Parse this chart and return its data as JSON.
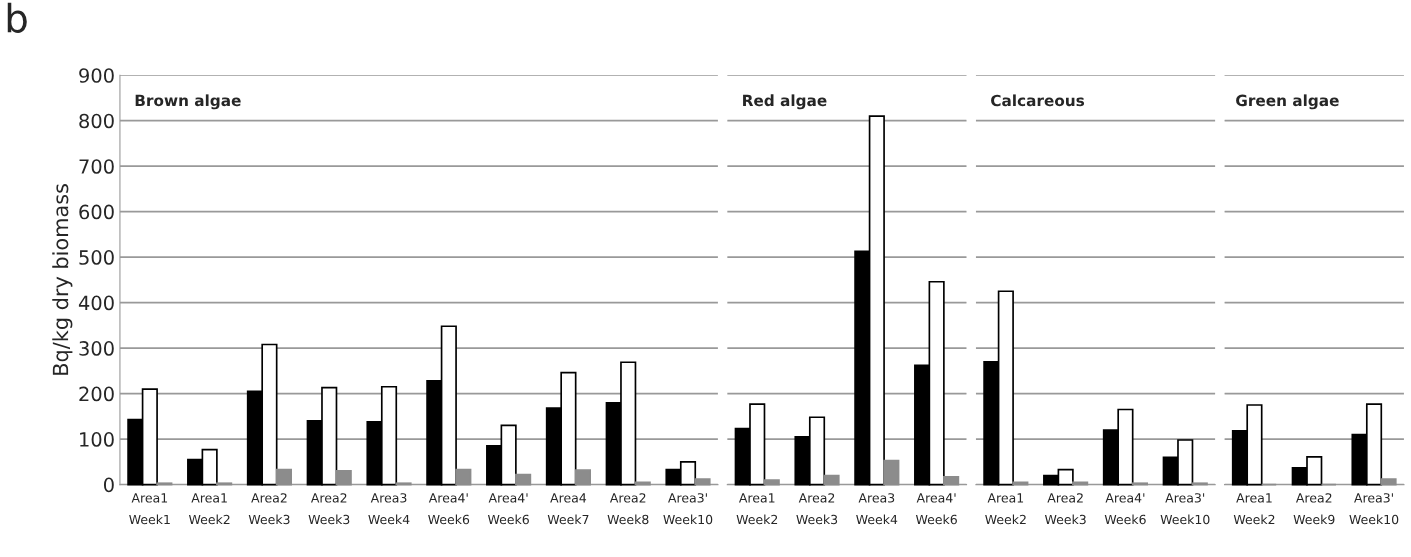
{
  "chart_data": [
    {
      "type": "bar",
      "title": "Brown algae",
      "ylabel": "Bq/kg dry biomass",
      "annotations": [
        "b"
      ],
      "categories": [
        "Area1\nWeek1",
        "Area1\nWeek2",
        "Area2\nWeek3",
        "Area2\nWeek3",
        "Area3\nWeek4",
        "Area4'\nWeek6",
        "Area4'\nWeek6",
        "Area4\nWeek7",
        "Area2\nWeek8",
        "Area3'\nWeek10"
      ],
      "series": [
        {
          "color": "#000000",
          "values": [
            143,
            55,
            205,
            140,
            138,
            228,
            85,
            168,
            180,
            33
          ]
        },
        {
          "color": "#ffffff",
          "values": [
            210,
            77,
            308,
            213,
            215,
            348,
            130,
            246,
            269,
            50
          ]
        },
        {
          "color": "#8c8c8c",
          "values": [
            3,
            3,
            33,
            30,
            3,
            33,
            22,
            32,
            5,
            12
          ]
        }
      ],
      "ylim": [
        0,
        900
      ],
      "yticks": [
        0,
        100,
        200,
        300,
        400,
        500,
        600,
        700,
        800,
        900
      ],
      "grid": "y"
    },
    {
      "type": "bar",
      "title": "Red algae",
      "categories": [
        "Area1\nWeek2",
        "Area2\nWeek3",
        "Area3\nWeek4",
        "Area4'\nWeek6"
      ],
      "series": [
        {
          "color": "#000000",
          "values": [
            123,
            105,
            513,
            262
          ]
        },
        {
          "color": "#ffffff",
          "values": [
            177,
            148,
            810,
            446
          ]
        },
        {
          "color": "#8c8c8c",
          "values": [
            10,
            20,
            53,
            17
          ]
        }
      ],
      "ylim": [
        0,
        900
      ],
      "yticks": [
        0,
        100,
        200,
        300,
        400,
        500,
        600,
        700,
        800,
        900
      ],
      "grid": "y",
      "tick_labels": "x"
    },
    {
      "type": "bar",
      "title": "Calcareous",
      "categories": [
        "Area1\nWeek2",
        "Area2\nWeek3",
        "Area4'\nWeek6",
        "Area3'\nWeek10"
      ],
      "series": [
        {
          "color": "#000000",
          "values": [
            270,
            20,
            120,
            60
          ]
        },
        {
          "color": "#ffffff",
          "values": [
            425,
            33,
            165,
            98
          ]
        },
        {
          "color": "#8c8c8c",
          "values": [
            5,
            5,
            3,
            3
          ]
        }
      ],
      "ylim": [
        0,
        900
      ],
      "yticks": [
        0,
        100,
        200,
        300,
        400,
        500,
        600,
        700,
        800,
        900
      ],
      "grid": "y",
      "tick_labels": "x"
    },
    {
      "type": "bar",
      "title": "Green algae",
      "categories": [
        "Area1\nWeek2",
        "Area2\nWeek9",
        "Area3'\nWeek10"
      ],
      "series": [
        {
          "color": "#000000",
          "values": [
            118,
            37,
            110
          ]
        },
        {
          "color": "#ffffff",
          "values": [
            175,
            61,
            177
          ]
        },
        {
          "color": "#8c8c8c",
          "values": [
            0,
            0,
            12
          ]
        }
      ],
      "ylim": [
        0,
        900
      ],
      "yticks": [
        0,
        100,
        200,
        300,
        400,
        500,
        600,
        700,
        800,
        900
      ],
      "grid": "y",
      "tick_labels": "x"
    }
  ]
}
